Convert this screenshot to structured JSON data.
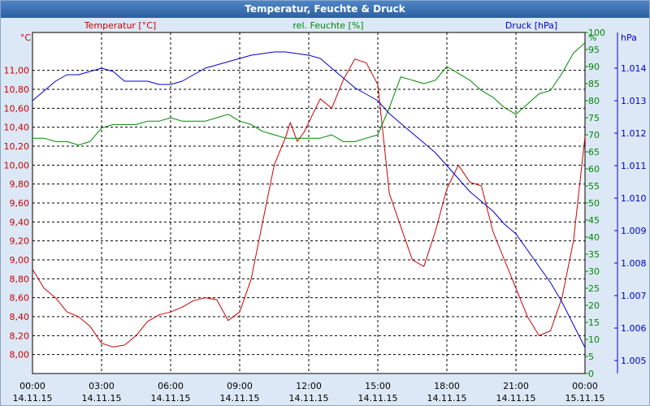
{
  "window": {
    "title": "Temperatur, Feuchte & Druck"
  },
  "colors": {
    "temperature": "#cc0000",
    "humidity": "#008800",
    "pressure": "#0000cc",
    "grid": "#000000",
    "axis_text": "#000000"
  },
  "chart_data": {
    "type": "line",
    "title": "Temperatur, Feuchte & Druck",
    "grid": true,
    "x_tick_labels": [
      {
        "time": "00:00",
        "date": "14.11.15"
      },
      {
        "time": "03:00",
        "date": "14.11.15"
      },
      {
        "time": "06:00",
        "date": "14.11.15"
      },
      {
        "time": "09:00",
        "date": "14.11.15"
      },
      {
        "time": "12:00",
        "date": "14.11.15"
      },
      {
        "time": "15:00",
        "date": "14.11.15"
      },
      {
        "time": "18:00",
        "date": "14.11.15"
      },
      {
        "time": "21:00",
        "date": "14.11.15"
      },
      {
        "time": "00:00",
        "date": "15.11.15"
      }
    ],
    "xlim_hours": [
      0,
      24
    ],
    "axes": {
      "temperature": {
        "label": "Temperatur [°C]",
        "unit": "°C",
        "ylim": [
          7.8,
          11.4
        ],
        "ticks": [
          "8,00",
          "8,20",
          "8,40",
          "8,60",
          "8,80",
          "9,00",
          "9,20",
          "9,40",
          "9,60",
          "9,80",
          "10,00",
          "10,20",
          "10,40",
          "10,60",
          "10,80",
          "11,00"
        ]
      },
      "humidity": {
        "label": "rel. Feuchte [%]",
        "unit": "%",
        "ylim": [
          0,
          100
        ],
        "ticks": [
          "0",
          "5",
          "10",
          "15",
          "20",
          "25",
          "30",
          "35",
          "40",
          "45",
          "50",
          "55",
          "60",
          "65",
          "70",
          "75",
          "80",
          "85",
          "90",
          "95",
          "100"
        ]
      },
      "pressure": {
        "label": "Druck [hPa]",
        "unit": "hPa",
        "ylim": [
          1004.6,
          1015.1
        ],
        "ticks": [
          "1.005",
          "1.006",
          "1.007",
          "1.008",
          "1.009",
          "1.010",
          "1.011",
          "1.012",
          "1.013",
          "1.014"
        ]
      }
    },
    "series": [
      {
        "name": "Temperatur [°C]",
        "axis": "temperature",
        "x": [
          0,
          0.5,
          1,
          1.5,
          2,
          2.5,
          3,
          3.5,
          4,
          4.5,
          5,
          5.5,
          6,
          6.5,
          7,
          7.5,
          8,
          8.5,
          9,
          9.5,
          10,
          10.5,
          11,
          11.2,
          11.5,
          11.8,
          12,
          12.5,
          13,
          13.5,
          14,
          14.5,
          15,
          15.5,
          16,
          16.5,
          17,
          17.5,
          18,
          18.5,
          19,
          19.5,
          20,
          20.5,
          21,
          21.5,
          22,
          22.5,
          23,
          23.5,
          24
        ],
        "values": [
          8.9,
          8.7,
          8.6,
          8.45,
          8.4,
          8.3,
          8.12,
          8.08,
          8.1,
          8.2,
          8.35,
          8.42,
          8.45,
          8.5,
          8.57,
          8.6,
          8.58,
          8.36,
          8.45,
          8.8,
          9.4,
          10.0,
          10.3,
          10.45,
          10.25,
          10.35,
          10.45,
          10.7,
          10.6,
          10.9,
          11.12,
          11.08,
          10.85,
          9.7,
          9.35,
          9.0,
          8.93,
          9.3,
          9.75,
          10.0,
          9.82,
          9.78,
          9.3,
          9.0,
          8.7,
          8.4,
          8.2,
          8.25,
          8.6,
          9.2,
          10.3
        ]
      },
      {
        "name": "rel. Feuchte [%]",
        "axis": "humidity",
        "x": [
          0,
          0.5,
          1,
          1.5,
          2,
          2.5,
          3,
          3.5,
          4,
          4.5,
          5,
          5.5,
          6,
          6.5,
          7,
          7.5,
          8,
          8.5,
          9,
          9.5,
          10,
          10.5,
          11,
          11.5,
          12,
          12.5,
          13,
          13.5,
          14,
          14.5,
          15,
          15.5,
          16,
          16.5,
          17,
          17.5,
          18,
          18.5,
          19,
          19.5,
          20,
          20.5,
          21,
          21.5,
          22,
          22.5,
          23,
          23.5,
          24
        ],
        "values": [
          69,
          69,
          68,
          68,
          67,
          68,
          72,
          73,
          73,
          73,
          74,
          74,
          75,
          74,
          74,
          74,
          75,
          76,
          74,
          73,
          71,
          70,
          69,
          69,
          69,
          69,
          70,
          68,
          68,
          69,
          70,
          78,
          87,
          86,
          85,
          86,
          90,
          88,
          86,
          83,
          81,
          78,
          76,
          79,
          82,
          83,
          88,
          94,
          97
        ]
      },
      {
        "name": "Druck [hPa]",
        "axis": "pressure",
        "x": [
          0,
          0.5,
          1,
          1.5,
          2,
          2.5,
          3,
          3.5,
          4,
          4.5,
          5,
          5.5,
          6,
          6.5,
          7,
          7.5,
          8,
          8.5,
          9,
          9.5,
          10,
          10.5,
          11,
          11.5,
          12,
          12.5,
          13,
          13.5,
          14,
          14.5,
          15,
          15.5,
          16,
          16.5,
          17,
          17.5,
          18,
          18.5,
          19,
          19.5,
          20,
          20.5,
          21,
          21.5,
          22,
          22.5,
          23,
          23.5,
          24
        ],
        "values": [
          1013.0,
          1013.3,
          1013.6,
          1013.8,
          1013.8,
          1013.9,
          1014.0,
          1013.9,
          1013.6,
          1013.6,
          1013.6,
          1013.5,
          1013.5,
          1013.6,
          1013.8,
          1014.0,
          1014.1,
          1014.2,
          1014.3,
          1014.4,
          1014.45,
          1014.5,
          1014.5,
          1014.45,
          1014.4,
          1014.3,
          1014.0,
          1013.7,
          1013.4,
          1013.2,
          1013.0,
          1012.6,
          1012.3,
          1012.0,
          1011.7,
          1011.4,
          1011.0,
          1010.6,
          1010.2,
          1009.9,
          1009.6,
          1009.2,
          1008.9,
          1008.4,
          1007.9,
          1007.4,
          1006.8,
          1006.1,
          1005.4
        ]
      }
    ]
  }
}
